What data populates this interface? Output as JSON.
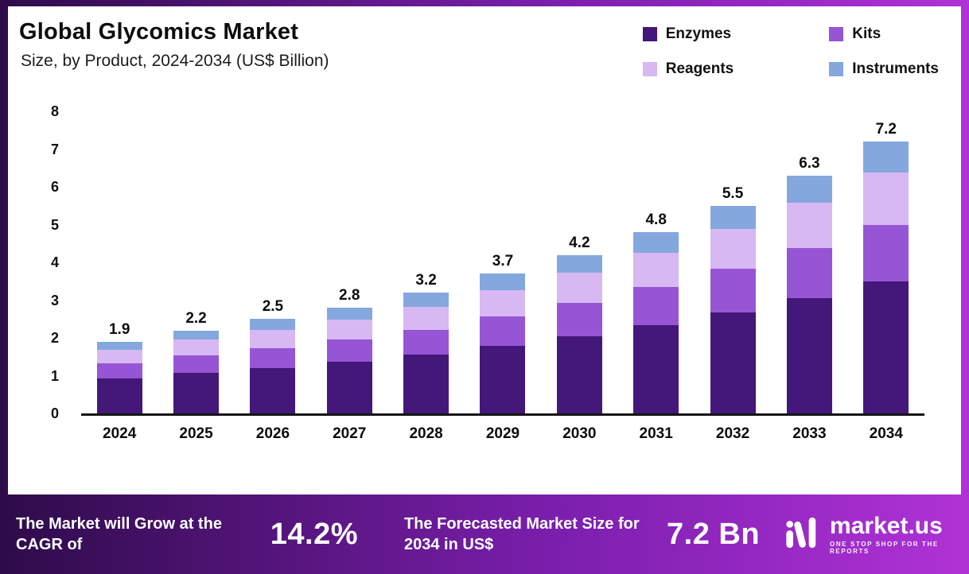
{
  "header": {
    "title": "Global Glycomics Market",
    "subtitle": "Size, by Product, 2024-2034 (US$ Billion)"
  },
  "chart_data": {
    "type": "bar",
    "stacked": true,
    "title": "Global Glycomics Market Size, by Product, 2024-2034 (US$ Billion)",
    "xlabel": "",
    "ylabel": "US$ Billion",
    "ylim": [
      0,
      8
    ],
    "yticks": [
      0,
      1,
      2,
      3,
      4,
      5,
      6,
      7,
      8
    ],
    "grid": false,
    "legend_position": "top-right",
    "categories": [
      "2024",
      "2025",
      "2026",
      "2027",
      "2028",
      "2029",
      "2030",
      "2031",
      "2032",
      "2033",
      "2034"
    ],
    "totals": [
      "1.9",
      "2.2",
      "2.5",
      "2.8",
      "3.2",
      "3.7",
      "4.2",
      "4.8",
      "5.5",
      "6.3",
      "7.2"
    ],
    "series": [
      {
        "name": "Enzymes",
        "color": "#44177a",
        "values": [
          0.92,
          1.07,
          1.21,
          1.36,
          1.55,
          1.79,
          2.04,
          2.33,
          2.67,
          3.06,
          3.49
        ]
      },
      {
        "name": "Kits",
        "color": "#9655d4",
        "values": [
          0.4,
          0.46,
          0.52,
          0.59,
          0.67,
          0.78,
          0.88,
          1.01,
          1.16,
          1.32,
          1.51
        ]
      },
      {
        "name": "Reagents",
        "color": "#d7b8f2",
        "values": [
          0.36,
          0.42,
          0.48,
          0.53,
          0.61,
          0.7,
          0.8,
          0.91,
          1.05,
          1.2,
          1.37
        ]
      },
      {
        "name": "Instruments",
        "color": "#84a7de",
        "values": [
          0.22,
          0.25,
          0.29,
          0.32,
          0.37,
          0.43,
          0.48,
          0.55,
          0.62,
          0.72,
          0.83
        ]
      }
    ]
  },
  "footer": {
    "cagr_label": "The Market will Grow at the CAGR of",
    "cagr_value": "14.2%",
    "forecast_label": "The Forecasted Market Size for 2034 in US$",
    "forecast_value": "7.2 Bn",
    "brand": "market.us",
    "brand_tagline": "One Stop Shop For The Reports"
  },
  "colors": {
    "frame_gradient_start": "#2e0b4a",
    "frame_gradient_end": "#b032d6",
    "axis": "#141414",
    "text": "#0d0d0d"
  }
}
